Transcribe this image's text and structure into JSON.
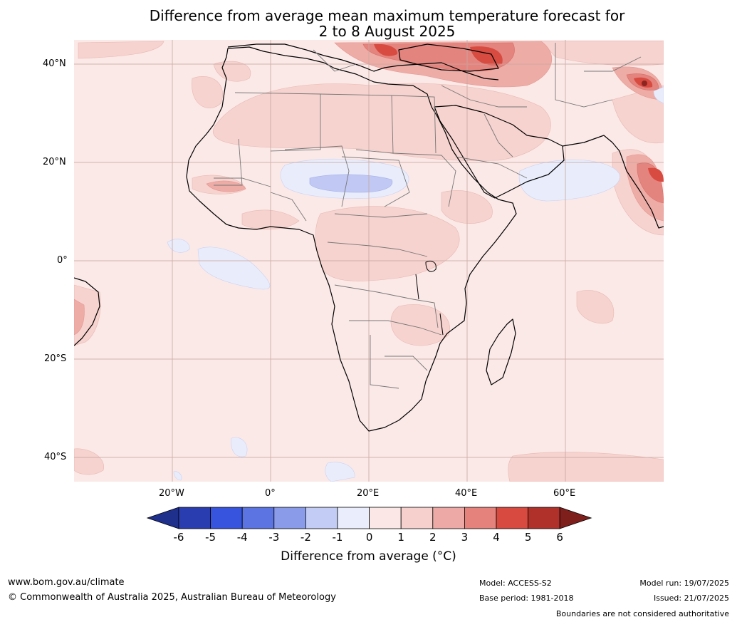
{
  "title": {
    "line1": "Difference from average mean maximum temperature forecast for",
    "line2": "2 to 8 August 2025"
  },
  "lat_labels": [
    "40°N",
    "20°N",
    "0°",
    "20°S",
    "40°S"
  ],
  "lon_labels": [
    "20°W",
    "0°",
    "20°E",
    "40°E",
    "60°E"
  ],
  "colorbar": {
    "ticks": [
      "-6",
      "-5",
      "-4",
      "-3",
      "-2",
      "-1",
      "0",
      "1",
      "2",
      "3",
      "4",
      "5",
      "6"
    ],
    "colors": [
      "#1e2f8c",
      "#2a3db0",
      "#3654dd",
      "#5c74e2",
      "#8a9ce9",
      "#c3ccf4",
      "#eaeefc",
      "#fbe8e6",
      "#f6d0cd",
      "#eda9a5",
      "#e4827b",
      "#d84a40",
      "#b0302a",
      "#7e1f1c"
    ],
    "title": "Difference from average (°C)"
  },
  "footer": {
    "website": "www.bom.gov.au/climate",
    "copyright": "© Commonwealth of Australia 2025, Australian Bureau of Meteorology",
    "model": "Model: ACCESS-S2",
    "base_period": "Base period: 1981-2018",
    "model_run": "Model run: 19/07/2025",
    "issued": "Issued: 21/07/2025",
    "disclaimer": "Boundaries are not considered authoritative"
  }
}
